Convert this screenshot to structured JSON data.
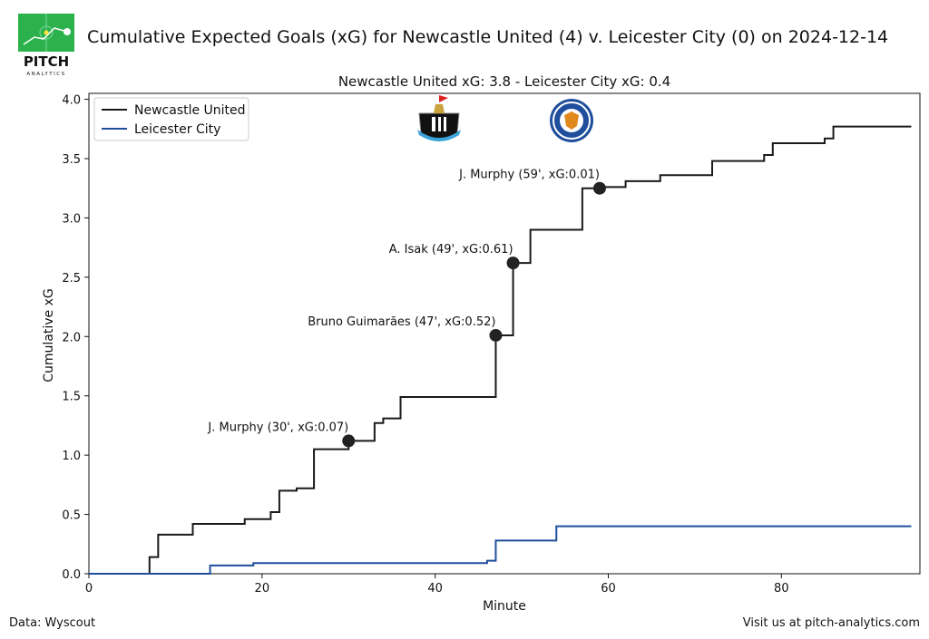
{
  "header": {
    "title": "Cumulative Expected Goals (xG) for Newcastle United (4) v. Leicester City (0) on 2024-12-14",
    "logo_text": "PITCH",
    "logo_subtext": "ANALYTICS",
    "logo_icon": "pitch-analytics-logo"
  },
  "footer": {
    "source": "Data: Wyscout",
    "website": "Visit us at pitch-analytics.com"
  },
  "colors": {
    "newcastle": "#1a1a1a",
    "leicester": "#1f4e9c",
    "logo_green": "#2bb24c"
  },
  "chart_data": {
    "type": "line",
    "title": "Newcastle United xG: 3.8 - Leicester City xG: 0.4",
    "xlabel": "Minute",
    "ylabel": "Cumulative xG",
    "xlim": [
      0,
      96
    ],
    "ylim": [
      0,
      4.05
    ],
    "xticks": [
      0,
      20,
      40,
      60,
      80
    ],
    "yticks": [
      0.0,
      0.5,
      1.0,
      1.5,
      2.0,
      2.5,
      3.0,
      3.5,
      4.0
    ],
    "grid": false,
    "legend": "top-left",
    "series": [
      {
        "name": "Newcastle United",
        "step": true,
        "x": [
          0,
          7,
          8,
          12,
          18,
          21,
          22,
          24,
          26,
          30,
          33,
          34,
          36,
          47,
          49,
          51,
          57,
          59,
          62,
          66,
          72,
          78,
          79,
          85,
          86,
          95
        ],
        "y": [
          0,
          0.14,
          0.33,
          0.42,
          0.46,
          0.52,
          0.7,
          0.72,
          1.05,
          1.12,
          1.27,
          1.31,
          1.49,
          2.01,
          2.62,
          2.9,
          3.25,
          3.26,
          3.31,
          3.36,
          3.48,
          3.53,
          3.63,
          3.67,
          3.77,
          3.77
        ]
      },
      {
        "name": "Leicester City",
        "step": true,
        "x": [
          0,
          14,
          19,
          46,
          47,
          54,
          95
        ],
        "y": [
          0,
          0.07,
          0.09,
          0.11,
          0.28,
          0.4,
          0.4
        ]
      }
    ],
    "goals": [
      {
        "label": "J. Murphy (30', xG:0.07)",
        "x": 30,
        "y": 1.12
      },
      {
        "label": "Bruno Guimarães (47', xG:0.52)",
        "x": 47,
        "y": 2.01
      },
      {
        "label": "A. Isak (49', xG:0.61)",
        "x": 49,
        "y": 2.62
      },
      {
        "label": "J. Murphy (59', xG:0.01)",
        "x": 59,
        "y": 3.25
      }
    ],
    "team_crests": [
      "newcastle-crest-icon",
      "leicester-crest-icon"
    ]
  }
}
